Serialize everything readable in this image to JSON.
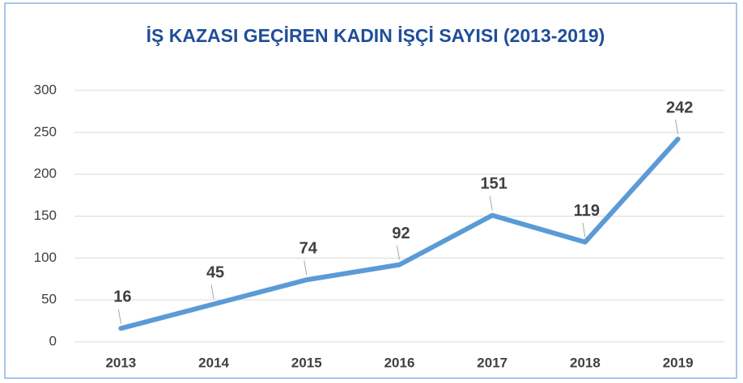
{
  "chart_data": {
    "type": "line",
    "title": "İŞ KAZASI GEÇİREN KADIN İŞÇİ SAYISI (2013-2019)",
    "categories": [
      "2013",
      "2014",
      "2015",
      "2016",
      "2017",
      "2018",
      "2019"
    ],
    "values": [
      16,
      45,
      74,
      92,
      151,
      119,
      242
    ],
    "color": "#5b9bd5",
    "ylim": [
      0,
      300
    ],
    "yticks": [
      0,
      50,
      100,
      150,
      200,
      250,
      300
    ],
    "grid": true
  }
}
